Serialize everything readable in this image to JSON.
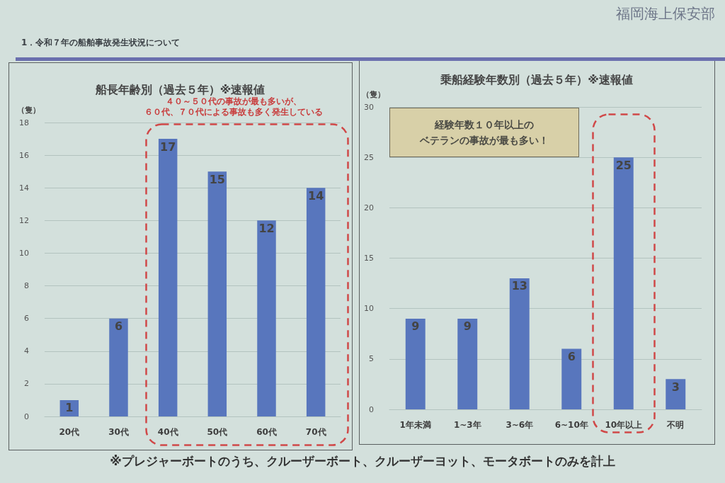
{
  "chart_data": [
    {
      "type": "bar",
      "title": "船長年齢別（過去５年）※速報値",
      "ylabel": "（隻）",
      "categories": [
        "20代",
        "30代",
        "40代",
        "50代",
        "60代",
        "70代"
      ],
      "values": [
        1,
        6,
        17,
        15,
        12,
        14
      ],
      "color": "#5876bd",
      "ylim": [
        0,
        18
      ],
      "yticks": [
        0,
        2,
        4,
        6,
        8,
        10,
        12,
        14,
        16,
        18
      ],
      "grid": "y",
      "data_labels": true,
      "annotations": [
        "1．令和７年の船舶事故発生状況について",
        "福岡海上保安部",
        "４０～５０代の事故が最も多いが、",
        "６０代、７０代による事故も多く発生している"
      ]
    },
    {
      "type": "bar",
      "title": "乗船経験年数別（過去５年）※速報値",
      "ylabel": "（隻）",
      "categories": [
        "1年未満",
        "1~3年",
        "3~6年",
        "6~10年",
        "10年以上",
        "不明"
      ],
      "values": [
        9,
        9,
        13,
        6,
        25,
        3
      ],
      "color": "#5876bd",
      "ylim": [
        0,
        30
      ],
      "yticks": [
        0,
        5,
        10,
        15,
        20,
        25,
        30
      ],
      "grid": "y",
      "data_labels": true,
      "annotations": [
        "経験年数１０年以上の",
        "ベテランの事故が最も多い！",
        "※プレジャーボートのうち、クルーザーボート、クルーザーヨット、モータボートのみを計上"
      ]
    }
  ]
}
